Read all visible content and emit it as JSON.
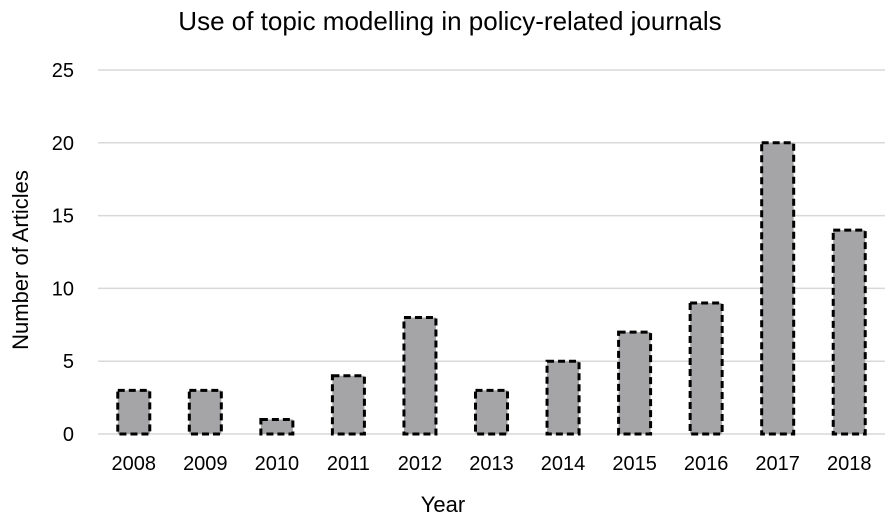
{
  "chart_data": {
    "type": "bar",
    "title": "Use of topic modelling in policy-related journals",
    "xlabel": "Year",
    "ylabel": "Number of Articles",
    "categories": [
      "2008",
      "2009",
      "2010",
      "2011",
      "2012",
      "2013",
      "2014",
      "2015",
      "2016",
      "2017",
      "2018"
    ],
    "values": [
      3,
      3,
      1,
      4,
      8,
      3,
      5,
      7,
      9,
      20,
      14
    ],
    "ylim": [
      0,
      25
    ],
    "yticks": [
      "0",
      "5",
      "10",
      "15",
      "20",
      "25"
    ],
    "grid": true,
    "legend": "none",
    "bar_color": "#a5a5a8",
    "bar_border_color": "#000000",
    "bar_border_style": "dashed",
    "gridline_color": "#d9d9d9"
  }
}
